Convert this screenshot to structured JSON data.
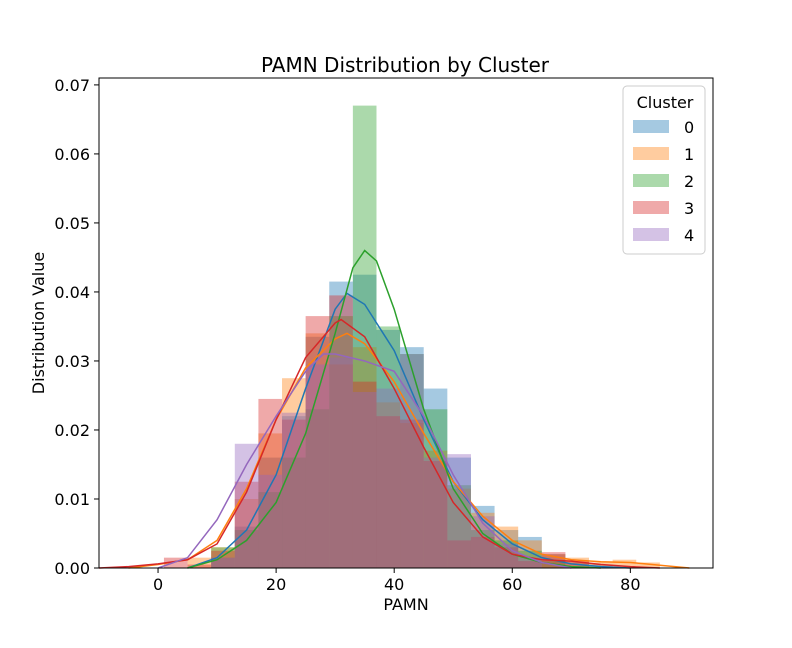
{
  "chart_data": {
    "type": "histogram-kde",
    "title": "PAMN Distribution by Cluster",
    "xlabel": "PAMN",
    "ylabel": "Distribution Value",
    "xlim": [
      -10,
      94
    ],
    "ylim": [
      0,
      0.071
    ],
    "xticks": [
      0,
      20,
      40,
      60,
      80
    ],
    "xtick_labels": [
      "0",
      "20",
      "40",
      "60",
      "80"
    ],
    "yticks": [
      0,
      0.01,
      0.02,
      0.03,
      0.04,
      0.05,
      0.06,
      0.07
    ],
    "ytick_labels": [
      "0.00",
      "0.01",
      "0.02",
      "0.03",
      "0.04",
      "0.05",
      "0.06",
      "0.07"
    ],
    "legend": {
      "title": "Cluster",
      "position": "top-right"
    },
    "series": [
      {
        "name": "0",
        "color": "#1f77b4",
        "bins": [
          [
            9,
            13,
            0.0015
          ],
          [
            13,
            17,
            0.006
          ],
          [
            17,
            21,
            0.016
          ],
          [
            21,
            25,
            0.022
          ],
          [
            25,
            29,
            0.0335
          ],
          [
            29,
            33,
            0.0415
          ],
          [
            33,
            37,
            0.0425
          ],
          [
            37,
            41,
            0.0345
          ],
          [
            41,
            45,
            0.032
          ],
          [
            45,
            49,
            0.026
          ],
          [
            49,
            53,
            0.016
          ],
          [
            53,
            57,
            0.009
          ],
          [
            57,
            61,
            0.0055
          ],
          [
            61,
            65,
            0.0045
          ],
          [
            65,
            69,
            0.002
          ],
          [
            69,
            73,
            0.0008
          ],
          [
            73,
            77,
            0.0005
          ]
        ],
        "kde": [
          [
            5,
            0
          ],
          [
            10,
            0.0015
          ],
          [
            15,
            0.0055
          ],
          [
            20,
            0.0135
          ],
          [
            25,
            0.026
          ],
          [
            30,
            0.0375
          ],
          [
            32,
            0.0398
          ],
          [
            35,
            0.0382
          ],
          [
            40,
            0.0315
          ],
          [
            45,
            0.0215
          ],
          [
            50,
            0.0125
          ],
          [
            55,
            0.007
          ],
          [
            60,
            0.0035
          ],
          [
            65,
            0.0015
          ],
          [
            70,
            0.0006
          ],
          [
            75,
            0.0002
          ],
          [
            80,
            0
          ]
        ]
      },
      {
        "name": "1",
        "color": "#ff7f0e",
        "bins": [
          [
            5,
            9,
            0.0015
          ],
          [
            9,
            13,
            0.003
          ],
          [
            13,
            17,
            0.01
          ],
          [
            17,
            21,
            0.0195
          ],
          [
            21,
            25,
            0.0275
          ],
          [
            25,
            29,
            0.034
          ],
          [
            29,
            33,
            0.0295
          ],
          [
            33,
            37,
            0.032
          ],
          [
            37,
            41,
            0.024
          ],
          [
            41,
            45,
            0.021
          ],
          [
            45,
            49,
            0.017
          ],
          [
            49,
            53,
            0.0115
          ],
          [
            53,
            57,
            0.008
          ],
          [
            57,
            61,
            0.006
          ],
          [
            61,
            65,
            0.004
          ],
          [
            65,
            69,
            0.002
          ],
          [
            69,
            73,
            0.0015
          ],
          [
            73,
            77,
            0.0008
          ],
          [
            77,
            81,
            0.0012
          ],
          [
            81,
            85,
            0.0008
          ]
        ],
        "kde": [
          [
            -5,
            0
          ],
          [
            0,
            0.0005
          ],
          [
            5,
            0.0012
          ],
          [
            10,
            0.004
          ],
          [
            15,
            0.0115
          ],
          [
            20,
            0.0215
          ],
          [
            25,
            0.029
          ],
          [
            30,
            0.0332
          ],
          [
            32,
            0.034
          ],
          [
            35,
            0.0325
          ],
          [
            40,
            0.027
          ],
          [
            45,
            0.0195
          ],
          [
            50,
            0.0125
          ],
          [
            55,
            0.0075
          ],
          [
            60,
            0.004
          ],
          [
            65,
            0.002
          ],
          [
            70,
            0.0012
          ],
          [
            75,
            0.0009
          ],
          [
            80,
            0.0008
          ],
          [
            85,
            0.0004
          ],
          [
            90,
            0
          ]
        ]
      },
      {
        "name": "2",
        "color": "#2ca02c",
        "bins": [
          [
            9,
            13,
            0.003
          ],
          [
            13,
            17,
            0.0055
          ],
          [
            17,
            21,
            0.011
          ],
          [
            21,
            25,
            0.016
          ],
          [
            25,
            29,
            0.023
          ],
          [
            29,
            33,
            0.0365
          ],
          [
            33,
            37,
            0.067
          ],
          [
            37,
            41,
            0.035
          ],
          [
            41,
            45,
            0.031
          ],
          [
            45,
            49,
            0.023
          ],
          [
            49,
            53,
            0.012
          ],
          [
            53,
            57,
            0.0055
          ],
          [
            57,
            61,
            0.004
          ],
          [
            61,
            65,
            0.0025
          ],
          [
            65,
            69,
            0.001
          ]
        ],
        "kde": [
          [
            5,
            0
          ],
          [
            10,
            0.0012
          ],
          [
            15,
            0.004
          ],
          [
            20,
            0.0095
          ],
          [
            25,
            0.0195
          ],
          [
            30,
            0.034
          ],
          [
            33,
            0.0435
          ],
          [
            35,
            0.046
          ],
          [
            37,
            0.0445
          ],
          [
            40,
            0.0375
          ],
          [
            45,
            0.023
          ],
          [
            50,
            0.0115
          ],
          [
            55,
            0.005
          ],
          [
            60,
            0.002
          ],
          [
            65,
            0.0008
          ],
          [
            70,
            0.0002
          ],
          [
            75,
            0
          ]
        ]
      },
      {
        "name": "3",
        "color": "#d62728",
        "bins": [
          [
            1,
            5,
            0.0015
          ],
          [
            5,
            9,
            0.0005
          ],
          [
            9,
            13,
            0.0025
          ],
          [
            13,
            17,
            0.0125
          ],
          [
            17,
            21,
            0.0245
          ],
          [
            21,
            25,
            0.0215
          ],
          [
            25,
            29,
            0.0365
          ],
          [
            29,
            33,
            0.0395
          ],
          [
            33,
            37,
            0.027
          ],
          [
            37,
            41,
            0.022
          ],
          [
            41,
            45,
            0.0215
          ],
          [
            45,
            49,
            0.0155
          ],
          [
            49,
            53,
            0.004
          ],
          [
            53,
            57,
            0.0045
          ],
          [
            57,
            61,
            0.003
          ],
          [
            61,
            65,
            0.001
          ],
          [
            65,
            69,
            0.0023
          ],
          [
            69,
            73,
            0.001
          ]
        ],
        "kde": [
          [
            -10,
            0
          ],
          [
            -5,
            0.0002
          ],
          [
            0,
            0.0006
          ],
          [
            5,
            0.0012
          ],
          [
            10,
            0.0035
          ],
          [
            15,
            0.011
          ],
          [
            20,
            0.0215
          ],
          [
            25,
            0.0305
          ],
          [
            30,
            0.0355
          ],
          [
            31,
            0.036
          ],
          [
            35,
            0.0335
          ],
          [
            40,
            0.026
          ],
          [
            45,
            0.0175
          ],
          [
            50,
            0.0095
          ],
          [
            55,
            0.0045
          ],
          [
            60,
            0.002
          ],
          [
            65,
            0.0012
          ],
          [
            70,
            0.001
          ],
          [
            75,
            0.0005
          ],
          [
            80,
            0.0002
          ],
          [
            85,
            0
          ]
        ]
      },
      {
        "name": "4",
        "color": "#9467bd",
        "bins": [
          [
            9,
            13,
            0.0015
          ],
          [
            13,
            17,
            0.018
          ],
          [
            17,
            21,
            0.0135
          ],
          [
            21,
            25,
            0.0225
          ],
          [
            25,
            29,
            0.0295
          ],
          [
            29,
            33,
            0.0305
          ],
          [
            33,
            37,
            0.0255
          ],
          [
            37,
            41,
            0.026
          ],
          [
            41,
            45,
            0.031
          ],
          [
            45,
            49,
            0.016
          ],
          [
            49,
            53,
            0.0165
          ],
          [
            53,
            57,
            0.0075
          ],
          [
            57,
            61,
            0.0035
          ],
          [
            61,
            65,
            0.0015
          ]
        ],
        "kde": [
          [
            0,
            0
          ],
          [
            5,
            0.0015
          ],
          [
            10,
            0.007
          ],
          [
            15,
            0.015
          ],
          [
            20,
            0.022
          ],
          [
            25,
            0.0285
          ],
          [
            28,
            0.031
          ],
          [
            30,
            0.031
          ],
          [
            35,
            0.03
          ],
          [
            40,
            0.0285
          ],
          [
            45,
            0.022
          ],
          [
            50,
            0.0135
          ],
          [
            55,
            0.0065
          ],
          [
            60,
            0.0025
          ],
          [
            65,
            0.0008
          ],
          [
            70,
            0
          ]
        ]
      }
    ]
  }
}
